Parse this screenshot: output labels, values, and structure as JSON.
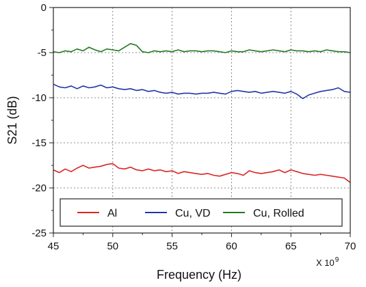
{
  "chart_data": {
    "type": "line",
    "title": "",
    "xlabel": "Frequency (Hz)",
    "ylabel": "S21 (dB)",
    "x_multiplier_label": "X 10",
    "x_multiplier_exponent": "9",
    "xlim": [
      45,
      70
    ],
    "ylim": [
      -25,
      0
    ],
    "x_ticks": [
      45,
      50,
      55,
      60,
      65,
      70
    ],
    "x_tick_labels": [
      "45",
      "50",
      "55",
      "60",
      "65",
      "70"
    ],
    "y_ticks": [
      -25,
      -20,
      -15,
      -10,
      -5,
      0
    ],
    "y_tick_labels": [
      "-25",
      "-20",
      "-15",
      "-10",
      "-5",
      "0"
    ],
    "grid": true,
    "legend_position": "bottom",
    "series": [
      {
        "name": "Al",
        "color": "#dd2222",
        "x": [
          45,
          45.5,
          46,
          46.5,
          47,
          47.5,
          48,
          48.5,
          49,
          49.5,
          50,
          50.5,
          51,
          51.5,
          52,
          52.5,
          53,
          53.5,
          54,
          54.5,
          55,
          55.5,
          56,
          56.5,
          57,
          57.5,
          58,
          58.5,
          59,
          59.5,
          60,
          60.5,
          61,
          61.5,
          62,
          62.5,
          63,
          63.5,
          64,
          64.5,
          65,
          65.5,
          66,
          66.5,
          67,
          67.5,
          68,
          68.5,
          69,
          69.5,
          70
        ],
        "values": [
          -18.0,
          -18.3,
          -17.9,
          -18.2,
          -17.8,
          -17.5,
          -17.8,
          -17.7,
          -17.6,
          -17.4,
          -17.3,
          -17.8,
          -17.9,
          -17.7,
          -18.0,
          -18.1,
          -17.9,
          -18.1,
          -18.0,
          -18.2,
          -18.1,
          -18.4,
          -18.2,
          -18.3,
          -18.4,
          -18.5,
          -18.4,
          -18.6,
          -18.7,
          -18.5,
          -18.3,
          -18.4,
          -18.6,
          -18.1,
          -18.3,
          -18.4,
          -18.3,
          -18.2,
          -18.0,
          -18.3,
          -18.0,
          -18.2,
          -18.4,
          -18.5,
          -18.6,
          -18.5,
          -18.6,
          -18.7,
          -18.8,
          -18.9,
          -19.4
        ]
      },
      {
        "name": "Cu, VD",
        "color": "#2233aa",
        "x": [
          45,
          45.5,
          46,
          46.5,
          47,
          47.5,
          48,
          48.5,
          49,
          49.5,
          50,
          50.5,
          51,
          51.5,
          52,
          52.5,
          53,
          53.5,
          54,
          54.5,
          55,
          55.5,
          56,
          56.5,
          57,
          57.5,
          58,
          58.5,
          59,
          59.5,
          60,
          60.5,
          61,
          61.5,
          62,
          62.5,
          63,
          63.5,
          64,
          64.5,
          65,
          65.5,
          66,
          66.5,
          67,
          67.5,
          68,
          68.5,
          69,
          69.5,
          70
        ],
        "values": [
          -8.5,
          -8.8,
          -8.9,
          -8.7,
          -9.0,
          -8.7,
          -8.9,
          -8.8,
          -8.6,
          -8.9,
          -8.8,
          -9.0,
          -9.1,
          -9.0,
          -9.2,
          -9.1,
          -9.3,
          -9.2,
          -9.4,
          -9.5,
          -9.4,
          -9.6,
          -9.5,
          -9.5,
          -9.6,
          -9.5,
          -9.5,
          -9.4,
          -9.5,
          -9.6,
          -9.3,
          -9.2,
          -9.3,
          -9.4,
          -9.3,
          -9.5,
          -9.4,
          -9.3,
          -9.4,
          -9.5,
          -9.3,
          -9.6,
          -10.1,
          -9.7,
          -9.5,
          -9.3,
          -9.2,
          -9.1,
          -8.9,
          -9.3,
          -9.4
        ]
      },
      {
        "name": "Cu, Rolled",
        "color": "#227722",
        "x": [
          45,
          45.5,
          46,
          46.5,
          47,
          47.5,
          48,
          48.5,
          49,
          49.5,
          50,
          50.5,
          51,
          51.5,
          52,
          52.5,
          53,
          53.5,
          54,
          54.5,
          55,
          55.5,
          56,
          56.5,
          57,
          57.5,
          58,
          58.5,
          59,
          59.5,
          60,
          60.5,
          61,
          61.5,
          62,
          62.5,
          63,
          63.5,
          64,
          64.5,
          65,
          65.5,
          66,
          66.5,
          67,
          67.5,
          68,
          68.5,
          69,
          69.5,
          70
        ],
        "values": [
          -4.9,
          -5.0,
          -4.8,
          -4.9,
          -4.6,
          -4.8,
          -4.4,
          -4.7,
          -4.9,
          -4.6,
          -4.7,
          -4.8,
          -4.4,
          -4.0,
          -4.2,
          -4.9,
          -5.0,
          -4.8,
          -4.9,
          -4.8,
          -4.9,
          -4.7,
          -4.9,
          -4.8,
          -4.8,
          -4.9,
          -4.8,
          -4.8,
          -4.9,
          -5.0,
          -4.8,
          -4.9,
          -4.9,
          -4.7,
          -4.8,
          -4.9,
          -4.8,
          -4.7,
          -4.8,
          -4.9,
          -4.7,
          -4.8,
          -4.8,
          -4.9,
          -4.8,
          -4.9,
          -4.7,
          -4.8,
          -4.9,
          -4.9,
          -5.0
        ]
      }
    ]
  }
}
